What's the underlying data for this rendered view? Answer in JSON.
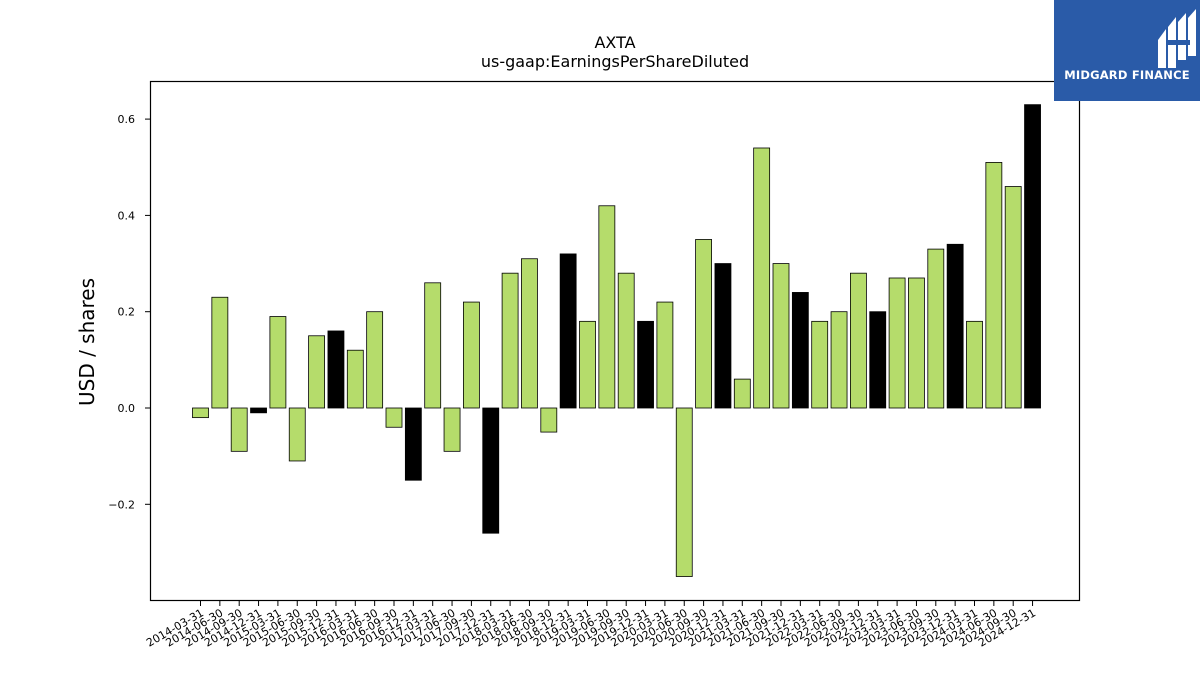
{
  "brand": {
    "name": "MIDGARD FINANCE",
    "background_color": "#2a5ba8",
    "text_color": "#ffffff"
  },
  "chart_data": {
    "type": "bar",
    "title": "AXTA",
    "subtitle": "us-gaap:EarningsPerShareDiluted",
    "xlabel": "",
    "ylabel": "USD / shares",
    "ylim": [
      -0.4,
      0.68
    ],
    "yticks": [
      -0.2,
      0.0,
      0.2,
      0.4,
      0.6
    ],
    "ytick_labels": [
      "−0.2",
      "0.0",
      "0.2",
      "0.4",
      "0.6"
    ],
    "grid": false,
    "colors": {
      "quarter": "#b5dc6b",
      "year_end": "#000000",
      "edge": "#000000"
    },
    "categories": [
      "2014-03-31",
      "2014-06-30",
      "2014-09-30",
      "2014-12-31",
      "2015-03-31",
      "2015-06-30",
      "2015-09-30",
      "2015-12-31",
      "2016-03-31",
      "2016-06-30",
      "2016-09-30",
      "2016-12-31",
      "2017-03-31",
      "2017-06-30",
      "2017-09-30",
      "2017-12-31",
      "2018-03-31",
      "2018-06-30",
      "2018-09-30",
      "2018-12-31",
      "2019-03-31",
      "2019-06-30",
      "2019-09-30",
      "2019-12-31",
      "2020-03-31",
      "2020-06-30",
      "2020-09-30",
      "2020-12-31",
      "2021-03-31",
      "2021-06-30",
      "2021-09-30",
      "2021-12-31",
      "2022-03-31",
      "2022-06-30",
      "2022-09-30",
      "2022-12-31",
      "2023-03-31",
      "2023-06-30",
      "2023-09-30",
      "2023-12-31",
      "2024-03-31",
      "2024-06-30",
      "2024-09-30",
      "2024-12-31"
    ],
    "values": [
      -0.02,
      0.23,
      -0.09,
      -0.01,
      0.19,
      -0.11,
      0.15,
      0.16,
      0.12,
      0.2,
      -0.04,
      -0.15,
      0.26,
      -0.09,
      0.22,
      -0.26,
      0.28,
      0.31,
      -0.05,
      0.32,
      0.18,
      0.42,
      0.28,
      0.18,
      0.22,
      -0.35,
      0.35,
      0.3,
      0.06,
      0.54,
      0.3,
      0.24,
      0.18,
      0.2,
      0.28,
      0.2,
      0.27,
      0.27,
      0.33,
      0.34,
      0.18,
      0.51,
      0.46,
      0.63
    ]
  }
}
